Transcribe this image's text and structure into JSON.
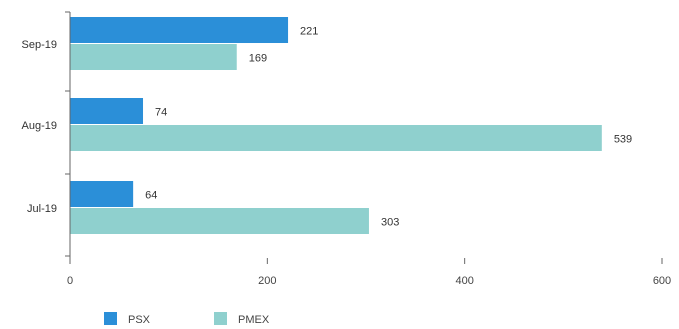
{
  "chart_data": {
    "type": "bar",
    "orientation": "horizontal",
    "categories": [
      "Sep-19",
      "Aug-19",
      "Jul-19"
    ],
    "series": [
      {
        "name": "PSX",
        "values": [
          221,
          74,
          64
        ],
        "color": "#2b8fd8"
      },
      {
        "name": "PMEX",
        "values": [
          169,
          539,
          303
        ],
        "color": "#8fd0ce"
      }
    ],
    "xlim": [
      0,
      600
    ],
    "xticks": [
      0,
      200,
      400,
      600
    ],
    "grid": false,
    "legend_position": "bottom-left",
    "data_labels": true
  }
}
